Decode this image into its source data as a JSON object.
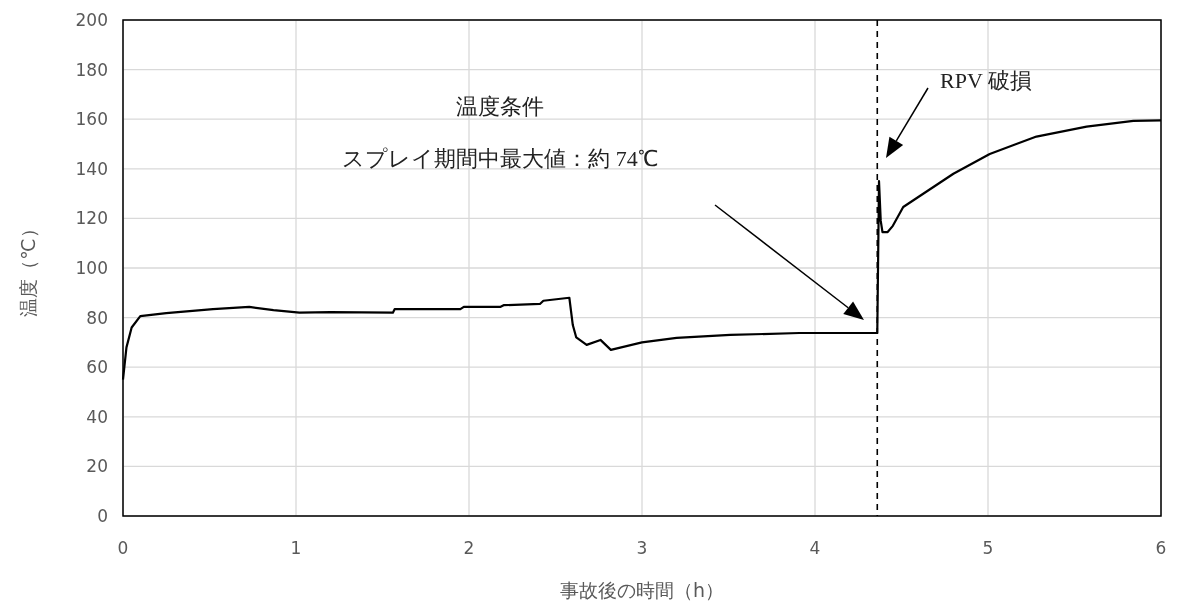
{
  "chart_data": {
    "type": "line",
    "xlabel": "事故後の時間（h）",
    "ylabel": "温度（℃）",
    "xlim": [
      0,
      6
    ],
    "xticks": [
      0,
      1,
      2,
      3,
      4,
      5,
      6
    ],
    "ylim": [
      0,
      200
    ],
    "yticks": [
      0,
      20,
      40,
      60,
      80,
      100,
      120,
      140,
      160,
      180,
      200
    ],
    "grid": true,
    "marker": "none",
    "line_style": "solid",
    "series": [
      {
        "color": "#000000",
        "x": [
          0,
          0.02,
          0.05,
          0.1,
          0.25,
          0.52,
          0.73,
          0.87,
          1.02,
          1.2,
          1.56,
          1.57,
          1.95,
          1.97,
          2.18,
          2.2,
          2.41,
          2.43,
          2.58,
          2.6,
          2.62,
          2.68,
          2.76,
          2.82,
          3.0,
          3.2,
          3.51,
          3.91,
          4.36,
          4.37,
          4.38,
          4.39,
          4.42,
          4.45,
          4.51,
          4.8,
          5.01,
          5.28,
          5.57,
          5.84,
          6
        ],
        "values": [
          55,
          68,
          76,
          80.6,
          81.8,
          83.4,
          84.3,
          83,
          82,
          82.2,
          82,
          83.4,
          83.4,
          84.3,
          84.3,
          85,
          85.5,
          86.8,
          88,
          77,
          72,
          69,
          71,
          67,
          70,
          71.8,
          73,
          73.8,
          73.8,
          135,
          119,
          114.5,
          114.5,
          117,
          124.6,
          138,
          146,
          153,
          157,
          159.3,
          159.5
        ]
      }
    ],
    "ref_lines": [
      {
        "axis": "x",
        "value": 4.36,
        "line_style": "dashed",
        "color": "#000000"
      }
    ],
    "annotations": [
      "温度条件",
      "スプレイ期間中最大値：約 74℃",
      "RPV 破損"
    ]
  }
}
